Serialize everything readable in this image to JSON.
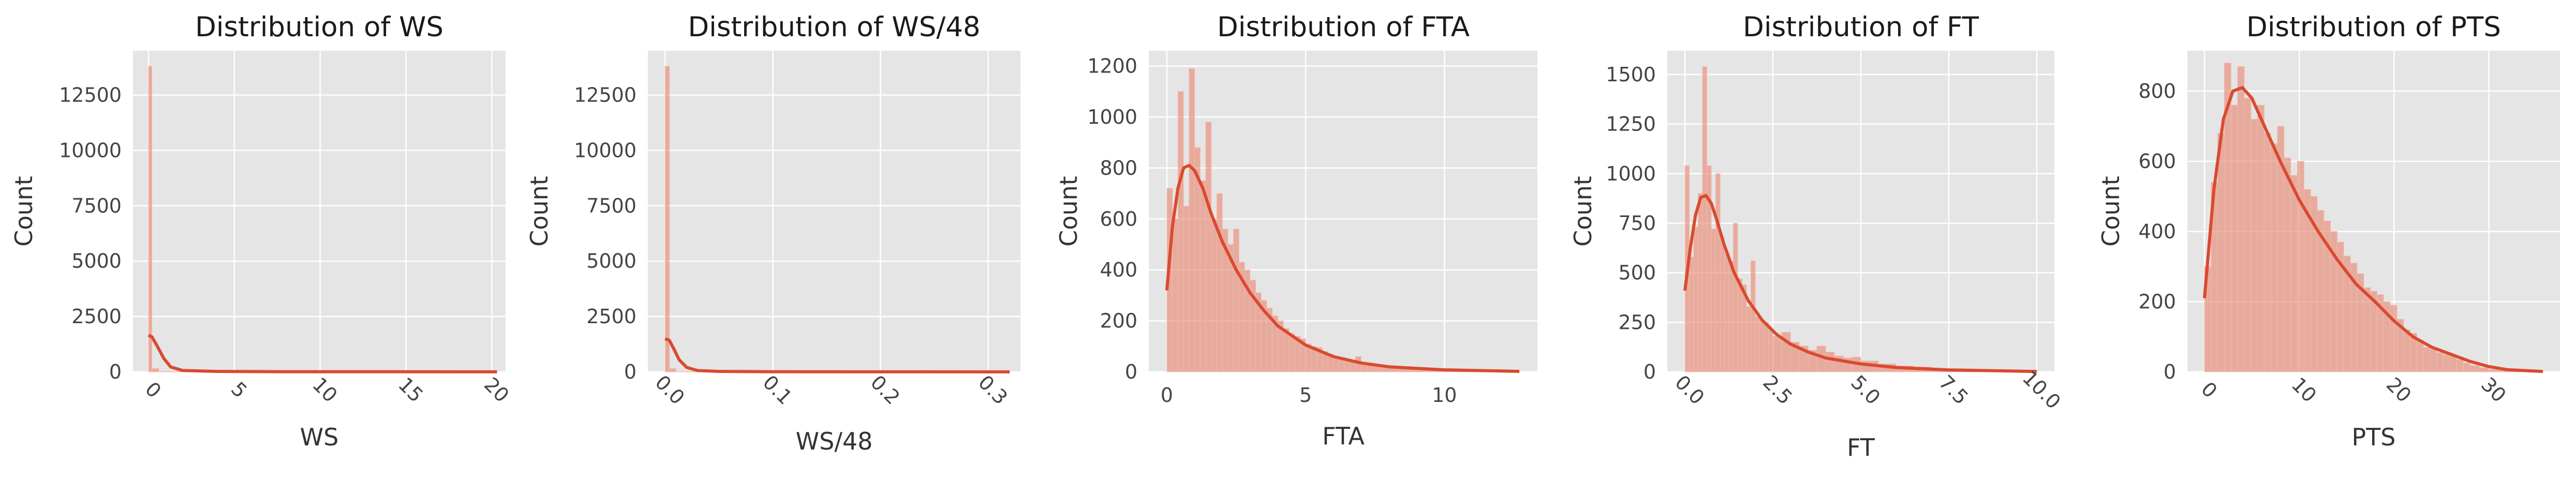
{
  "colors": {
    "panel_bg": "#e5e5e5",
    "grid": "#ffffff",
    "bar": "#e8836e",
    "bar_edge": "#f4b8aa",
    "kde": "#d94a30"
  },
  "chart_data": [
    {
      "type": "histogram",
      "title": "Distribution of WS",
      "xlabel": "WS",
      "ylabel": "Count",
      "xlim": [
        -0.9,
        20.8
      ],
      "ylim": [
        0,
        14500
      ],
      "xticks": [
        0,
        5,
        10,
        15,
        20
      ],
      "xtick_labels": [
        "0",
        "5",
        "10",
        "15",
        "20"
      ],
      "xtick_rotation": 45,
      "yticks": [
        0,
        2500,
        5000,
        7500,
        10000,
        12500
      ],
      "ytick_labels": [
        "0",
        "2500",
        "5000",
        "7500",
        "10000",
        "12500"
      ],
      "grid": true,
      "bins": [
        {
          "x0": 0.0,
          "x1": 0.2,
          "count": 13800
        },
        {
          "x0": 0.2,
          "x1": 0.6,
          "count": 150
        },
        {
          "x0": 0.6,
          "x1": 20.3,
          "count": 20
        }
      ],
      "kde": {
        "x": [
          0,
          0.2,
          0.5,
          0.9,
          1.3,
          2,
          4,
          8,
          14,
          20.3
        ],
        "y": [
          1650,
          1580,
          1180,
          600,
          220,
          60,
          20,
          8,
          4,
          2
        ]
      }
    },
    {
      "type": "histogram",
      "title": "Distribution of WS/48",
      "xlabel": "WS/48",
      "ylabel": "Count",
      "xlim": [
        -0.016,
        0.33
      ],
      "ylim": [
        0,
        14500
      ],
      "xticks": [
        0.0,
        0.1,
        0.2,
        0.3
      ],
      "xtick_labels": [
        "0.0",
        "0.1",
        "0.2",
        "0.3"
      ],
      "xtick_rotation": 45,
      "yticks": [
        0,
        2500,
        5000,
        7500,
        10000,
        12500
      ],
      "ytick_labels": [
        "0",
        "2500",
        "5000",
        "7500",
        "10000",
        "12500"
      ],
      "grid": true,
      "bins": [
        {
          "x0": 0.0,
          "x1": 0.004,
          "count": 13800
        },
        {
          "x0": 0.004,
          "x1": 0.01,
          "count": 150
        },
        {
          "x0": 0.01,
          "x1": 0.32,
          "count": 15
        }
      ],
      "kde": {
        "x": [
          0,
          0.004,
          0.008,
          0.013,
          0.02,
          0.03,
          0.05,
          0.1,
          0.2,
          0.32
        ],
        "y": [
          1500,
          1420,
          1050,
          550,
          200,
          60,
          20,
          8,
          3,
          1
        ]
      }
    },
    {
      "type": "histogram",
      "title": "Distribution of FTA",
      "xlabel": "FTA",
      "ylabel": "Count",
      "xlim": [
        -0.65,
        13.35
      ],
      "ylim": [
        0,
        1260
      ],
      "xticks": [
        0,
        5,
        10
      ],
      "xtick_labels": [
        "0",
        "5",
        "10"
      ],
      "xtick_rotation": 0,
      "yticks": [
        0,
        200,
        400,
        600,
        800,
        1000,
        1200
      ],
      "ytick_labels": [
        "0",
        "200",
        "400",
        "600",
        "800",
        "1000",
        "1200"
      ],
      "grid": true,
      "bins": [
        {
          "x0": 0.0,
          "x1": 0.2,
          "count": 720
        },
        {
          "x0": 0.2,
          "x1": 0.4,
          "count": 600
        },
        {
          "x0": 0.4,
          "x1": 0.6,
          "count": 1100
        },
        {
          "x0": 0.6,
          "x1": 0.8,
          "count": 650
        },
        {
          "x0": 0.8,
          "x1": 1.0,
          "count": 1190
        },
        {
          "x0": 1.0,
          "x1": 1.2,
          "count": 880
        },
        {
          "x0": 1.2,
          "x1": 1.4,
          "count": 750
        },
        {
          "x0": 1.4,
          "x1": 1.6,
          "count": 980
        },
        {
          "x0": 1.6,
          "x1": 1.8,
          "count": 600
        },
        {
          "x0": 1.8,
          "x1": 2.0,
          "count": 700
        },
        {
          "x0": 2.0,
          "x1": 2.2,
          "count": 560
        },
        {
          "x0": 2.2,
          "x1": 2.4,
          "count": 500
        },
        {
          "x0": 2.4,
          "x1": 2.6,
          "count": 560
        },
        {
          "x0": 2.6,
          "x1": 2.8,
          "count": 430
        },
        {
          "x0": 2.8,
          "x1": 3.0,
          "count": 400
        },
        {
          "x0": 3.0,
          "x1": 3.2,
          "count": 360
        },
        {
          "x0": 3.2,
          "x1": 3.4,
          "count": 310
        },
        {
          "x0": 3.4,
          "x1": 3.6,
          "count": 280
        },
        {
          "x0": 3.6,
          "x1": 3.8,
          "count": 250
        },
        {
          "x0": 3.8,
          "x1": 4.0,
          "count": 220
        },
        {
          "x0": 4.0,
          "x1": 4.2,
          "count": 200
        },
        {
          "x0": 4.2,
          "x1": 4.4,
          "count": 170
        },
        {
          "x0": 4.4,
          "x1": 4.6,
          "count": 150
        },
        {
          "x0": 4.6,
          "x1": 4.8,
          "count": 140
        },
        {
          "x0": 4.8,
          "x1": 5.0,
          "count": 130
        },
        {
          "x0": 5.0,
          "x1": 5.2,
          "count": 110
        },
        {
          "x0": 5.2,
          "x1": 5.4,
          "count": 100
        },
        {
          "x0": 5.4,
          "x1": 5.6,
          "count": 95
        },
        {
          "x0": 5.6,
          "x1": 5.8,
          "count": 80
        },
        {
          "x0": 5.8,
          "x1": 6.0,
          "count": 70
        },
        {
          "x0": 6.0,
          "x1": 6.2,
          "count": 60
        },
        {
          "x0": 6.2,
          "x1": 6.4,
          "count": 55
        },
        {
          "x0": 6.4,
          "x1": 6.6,
          "count": 50
        },
        {
          "x0": 6.6,
          "x1": 6.8,
          "count": 45
        },
        {
          "x0": 6.8,
          "x1": 7.0,
          "count": 60
        },
        {
          "x0": 7.0,
          "x1": 7.2,
          "count": 35
        },
        {
          "x0": 7.2,
          "x1": 7.4,
          "count": 30
        },
        {
          "x0": 7.4,
          "x1": 7.6,
          "count": 25
        },
        {
          "x0": 7.6,
          "x1": 7.8,
          "count": 22
        },
        {
          "x0": 7.8,
          "x1": 8.0,
          "count": 20
        },
        {
          "x0": 8.0,
          "x1": 8.5,
          "count": 15
        },
        {
          "x0": 8.5,
          "x1": 9.0,
          "count": 12
        },
        {
          "x0": 9.0,
          "x1": 10.0,
          "count": 8
        },
        {
          "x0": 10.0,
          "x1": 11.0,
          "count": 5
        },
        {
          "x0": 11.0,
          "x1": 12.7,
          "count": 3
        }
      ],
      "kde": {
        "x": [
          0,
          0.2,
          0.4,
          0.6,
          0.8,
          1.0,
          1.3,
          1.6,
          2,
          2.5,
          3,
          3.5,
          4,
          5,
          6,
          7,
          8,
          10,
          12.7
        ],
        "y": [
          320,
          570,
          720,
          800,
          810,
          790,
          720,
          620,
          510,
          400,
          310,
          240,
          180,
          105,
          60,
          35,
          20,
          8,
          2
        ]
      }
    },
    {
      "type": "histogram",
      "title": "Distribution of FT",
      "xlabel": "FT",
      "ylabel": "Count",
      "xlim": [
        -0.5,
        10.5
      ],
      "ylim": [
        0,
        1620
      ],
      "xticks": [
        0,
        2.5,
        5,
        7.5,
        10
      ],
      "xtick_labels": [
        "0.0",
        "2.5",
        "5.0",
        "7.5",
        "10.0"
      ],
      "xtick_rotation": 45,
      "yticks": [
        0,
        250,
        500,
        750,
        1000,
        1250,
        1500
      ],
      "ytick_labels": [
        "0",
        "250",
        "500",
        "750",
        "1000",
        "1250",
        "1500"
      ],
      "grid": true,
      "bins": [
        {
          "x0": 0.0,
          "x1": 0.125,
          "count": 1040
        },
        {
          "x0": 0.125,
          "x1": 0.25,
          "count": 580
        },
        {
          "x0": 0.25,
          "x1": 0.375,
          "count": 730
        },
        {
          "x0": 0.375,
          "x1": 0.5,
          "count": 900
        },
        {
          "x0": 0.5,
          "x1": 0.625,
          "count": 1540
        },
        {
          "x0": 0.625,
          "x1": 0.75,
          "count": 1040
        },
        {
          "x0": 0.75,
          "x1": 0.875,
          "count": 720
        },
        {
          "x0": 0.875,
          "x1": 1.0,
          "count": 1000
        },
        {
          "x0": 1.0,
          "x1": 1.125,
          "count": 680
        },
        {
          "x0": 1.125,
          "x1": 1.25,
          "count": 600
        },
        {
          "x0": 1.25,
          "x1": 1.375,
          "count": 560
        },
        {
          "x0": 1.375,
          "x1": 1.5,
          "count": 750
        },
        {
          "x0": 1.5,
          "x1": 1.625,
          "count": 470
        },
        {
          "x0": 1.625,
          "x1": 1.75,
          "count": 440
        },
        {
          "x0": 1.75,
          "x1": 1.875,
          "count": 330
        },
        {
          "x0": 1.875,
          "x1": 2.0,
          "count": 560
        },
        {
          "x0": 2.0,
          "x1": 2.125,
          "count": 280
        },
        {
          "x0": 2.125,
          "x1": 2.25,
          "count": 260
        },
        {
          "x0": 2.25,
          "x1": 2.375,
          "count": 250
        },
        {
          "x0": 2.375,
          "x1": 2.5,
          "count": 220
        },
        {
          "x0": 2.5,
          "x1": 2.75,
          "count": 180
        },
        {
          "x0": 2.75,
          "x1": 3.0,
          "count": 200
        },
        {
          "x0": 3.0,
          "x1": 3.25,
          "count": 150
        },
        {
          "x0": 3.25,
          "x1": 3.5,
          "count": 130
        },
        {
          "x0": 3.5,
          "x1": 3.75,
          "count": 110
        },
        {
          "x0": 3.75,
          "x1": 4.0,
          "count": 130
        },
        {
          "x0": 4.0,
          "x1": 4.25,
          "count": 100
        },
        {
          "x0": 4.25,
          "x1": 4.5,
          "count": 80
        },
        {
          "x0": 4.5,
          "x1": 4.75,
          "count": 70
        },
        {
          "x0": 4.75,
          "x1": 5.0,
          "count": 75
        },
        {
          "x0": 5.0,
          "x1": 5.5,
          "count": 55
        },
        {
          "x0": 5.5,
          "x1": 6.0,
          "count": 40
        },
        {
          "x0": 6.0,
          "x1": 6.5,
          "count": 30
        },
        {
          "x0": 6.5,
          "x1": 7.0,
          "count": 25
        },
        {
          "x0": 7.0,
          "x1": 8.0,
          "count": 15
        },
        {
          "x0": 8.0,
          "x1": 9.0,
          "count": 8
        },
        {
          "x0": 9.0,
          "x1": 10.0,
          "count": 4
        }
      ],
      "kde": {
        "x": [
          0,
          0.15,
          0.3,
          0.45,
          0.6,
          0.75,
          0.9,
          1.1,
          1.4,
          1.8,
          2.2,
          2.6,
          3,
          3.5,
          4,
          5,
          6,
          7.5,
          10
        ],
        "y": [
          410,
          620,
          790,
          880,
          890,
          850,
          770,
          650,
          500,
          360,
          260,
          190,
          140,
          100,
          70,
          40,
          22,
          10,
          2
        ]
      }
    },
    {
      "type": "histogram",
      "title": "Distribution of PTS",
      "xlabel": "PTS",
      "ylabel": "Count",
      "xlim": [
        -1.8,
        37.5
      ],
      "ylim": [
        0,
        915
      ],
      "xticks": [
        0,
        10,
        20,
        30
      ],
      "xtick_labels": [
        "0",
        "10",
        "20",
        "30"
      ],
      "xtick_rotation": 45,
      "yticks": [
        0,
        200,
        400,
        600,
        800
      ],
      "ytick_labels": [
        "0",
        "200",
        "400",
        "600",
        "800"
      ],
      "grid": true,
      "bins": [
        {
          "x0": 0,
          "x1": 0.7,
          "count": 300
        },
        {
          "x0": 0.7,
          "x1": 1.4,
          "count": 540
        },
        {
          "x0": 1.4,
          "x1": 2.1,
          "count": 680
        },
        {
          "x0": 2.1,
          "x1": 2.8,
          "count": 880
        },
        {
          "x0": 2.8,
          "x1": 3.5,
          "count": 760
        },
        {
          "x0": 3.5,
          "x1": 4.2,
          "count": 870
        },
        {
          "x0": 4.2,
          "x1": 4.9,
          "count": 780
        },
        {
          "x0": 4.9,
          "x1": 5.6,
          "count": 720
        },
        {
          "x0": 5.6,
          "x1": 6.3,
          "count": 760
        },
        {
          "x0": 6.3,
          "x1": 7.0,
          "count": 680
        },
        {
          "x0": 7.0,
          "x1": 7.7,
          "count": 650
        },
        {
          "x0": 7.7,
          "x1": 8.4,
          "count": 700
        },
        {
          "x0": 8.4,
          "x1": 9.1,
          "count": 610
        },
        {
          "x0": 9.1,
          "x1": 9.8,
          "count": 560
        },
        {
          "x0": 9.8,
          "x1": 10.5,
          "count": 600
        },
        {
          "x0": 10.5,
          "x1": 11.2,
          "count": 520
        },
        {
          "x0": 11.2,
          "x1": 11.9,
          "count": 500
        },
        {
          "x0": 11.9,
          "x1": 12.6,
          "count": 460
        },
        {
          "x0": 12.6,
          "x1": 13.3,
          "count": 430
        },
        {
          "x0": 13.3,
          "x1": 14.0,
          "count": 400
        },
        {
          "x0": 14.0,
          "x1": 14.7,
          "count": 370
        },
        {
          "x0": 14.7,
          "x1": 15.4,
          "count": 330
        },
        {
          "x0": 15.4,
          "x1": 16.1,
          "count": 310
        },
        {
          "x0": 16.1,
          "x1": 16.8,
          "count": 280
        },
        {
          "x0": 16.8,
          "x1": 17.5,
          "count": 240
        },
        {
          "x0": 17.5,
          "x1": 18.2,
          "count": 230
        },
        {
          "x0": 18.2,
          "x1": 18.9,
          "count": 220
        },
        {
          "x0": 18.9,
          "x1": 19.6,
          "count": 200
        },
        {
          "x0": 19.6,
          "x1": 20.3,
          "count": 190
        },
        {
          "x0": 20.3,
          "x1": 21.0,
          "count": 150
        },
        {
          "x0": 21.0,
          "x1": 21.7,
          "count": 120
        },
        {
          "x0": 21.7,
          "x1": 22.4,
          "count": 110
        },
        {
          "x0": 22.4,
          "x1": 23.1,
          "count": 90
        },
        {
          "x0": 23.1,
          "x1": 23.8,
          "count": 70
        },
        {
          "x0": 23.8,
          "x1": 24.5,
          "count": 65
        },
        {
          "x0": 24.5,
          "x1": 25.2,
          "count": 55
        },
        {
          "x0": 25.2,
          "x1": 25.9,
          "count": 50
        },
        {
          "x0": 25.9,
          "x1": 26.6,
          "count": 45
        },
        {
          "x0": 26.6,
          "x1": 27.3,
          "count": 35
        },
        {
          "x0": 27.3,
          "x1": 28.0,
          "count": 25
        },
        {
          "x0": 28.0,
          "x1": 29.0,
          "count": 18
        },
        {
          "x0": 29.0,
          "x1": 30.0,
          "count": 12
        },
        {
          "x0": 30.0,
          "x1": 32.0,
          "count": 7
        },
        {
          "x0": 32.0,
          "x1": 35.7,
          "count": 3
        }
      ],
      "kde": {
        "x": [
          0,
          1,
          2,
          3,
          4,
          5,
          6,
          8,
          10,
          12,
          14,
          16,
          18,
          20,
          22,
          24,
          26,
          28,
          30,
          32,
          35.7
        ],
        "y": [
          210,
          520,
          720,
          800,
          810,
          780,
          720,
          600,
          490,
          400,
          320,
          250,
          200,
          145,
          100,
          70,
          50,
          30,
          15,
          6,
          1
        ]
      }
    }
  ]
}
